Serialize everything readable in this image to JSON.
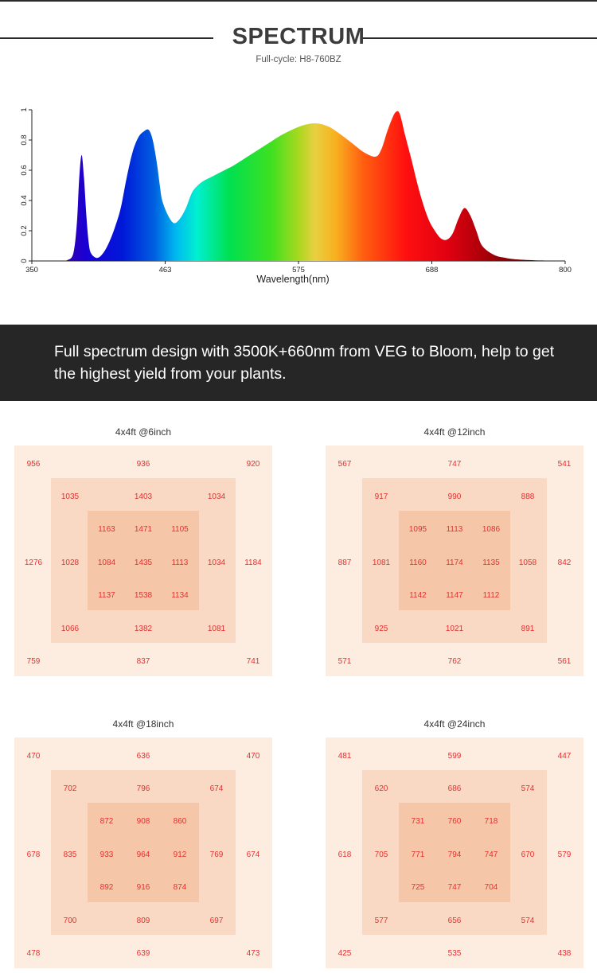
{
  "header": {
    "title": "SPECTRUM",
    "subtitle": "Full-cycle: H8-760BZ"
  },
  "chart_data": [
    {
      "type": "area",
      "title": "",
      "xlabel": "Wavelength(nm)",
      "ylabel": "",
      "xlim": [
        350,
        800
      ],
      "ylim": [
        0,
        1
      ],
      "x_ticks": [
        "350",
        "463",
        "575",
        "688",
        "800"
      ],
      "y_ticks": [
        "0",
        "0.2",
        "0.4",
        "0.6",
        "0.8",
        "1"
      ],
      "fill": "wavelength-colored gradient",
      "x": [
        350,
        375,
        380,
        385,
        388,
        390,
        392,
        394,
        396,
        398,
        400,
        405,
        410,
        415,
        420,
        425,
        430,
        435,
        440,
        445,
        448,
        450,
        452,
        454,
        456,
        458,
        460,
        465,
        470,
        475,
        480,
        485,
        490,
        495,
        500,
        505,
        510,
        515,
        520,
        530,
        540,
        550,
        560,
        570,
        580,
        590,
        600,
        610,
        620,
        630,
        640,
        645,
        650,
        655,
        658,
        660,
        662,
        665,
        670,
        675,
        680,
        685,
        690,
        695,
        700,
        705,
        710,
        715,
        720,
        725,
        730,
        740,
        750,
        760,
        780,
        800
      ],
      "y": [
        0,
        0,
        0.005,
        0.05,
        0.25,
        0.55,
        0.7,
        0.55,
        0.3,
        0.12,
        0.05,
        0.02,
        0.05,
        0.12,
        0.22,
        0.35,
        0.55,
        0.72,
        0.82,
        0.86,
        0.87,
        0.85,
        0.8,
        0.72,
        0.62,
        0.5,
        0.4,
        0.3,
        0.25,
        0.28,
        0.35,
        0.45,
        0.5,
        0.53,
        0.55,
        0.57,
        0.59,
        0.61,
        0.63,
        0.68,
        0.73,
        0.78,
        0.83,
        0.87,
        0.9,
        0.91,
        0.89,
        0.84,
        0.78,
        0.72,
        0.69,
        0.74,
        0.86,
        0.96,
        0.99,
        0.98,
        0.93,
        0.83,
        0.68,
        0.52,
        0.38,
        0.27,
        0.2,
        0.15,
        0.14,
        0.18,
        0.28,
        0.35,
        0.3,
        0.2,
        0.1,
        0.04,
        0.02,
        0.01,
        0.003,
        0
      ]
    },
    {
      "type": "heatmap",
      "title": "4x4ft @6inch",
      "rows": [
        [
          "956",
          "936",
          "920"
        ],
        [
          "1035",
          "1403",
          "1034"
        ],
        [
          "1163",
          "1471",
          "1105"
        ],
        [
          "1276",
          "1028",
          "1084",
          "1435",
          "1113",
          "1034",
          "1184"
        ],
        [
          "1137",
          "1538",
          "1134"
        ],
        [
          "1066",
          "1382",
          "1081"
        ],
        [
          "759",
          "837",
          "741"
        ]
      ]
    },
    {
      "type": "heatmap",
      "title": "4x4ft @12inch",
      "rows": [
        [
          "567",
          "747",
          "541"
        ],
        [
          "917",
          "990",
          "888"
        ],
        [
          "1095",
          "1113",
          "1086"
        ],
        [
          "887",
          "1081",
          "1160",
          "1174",
          "1135",
          "1058",
          "842"
        ],
        [
          "1142",
          "1147",
          "1112"
        ],
        [
          "925",
          "1021",
          "891"
        ],
        [
          "571",
          "762",
          "561"
        ]
      ]
    },
    {
      "type": "heatmap",
      "title": "4x4ft @18inch",
      "rows": [
        [
          "470",
          "636",
          "470"
        ],
        [
          "702",
          "796",
          "674"
        ],
        [
          "872",
          "908",
          "860"
        ],
        [
          "678",
          "835",
          "933",
          "964",
          "912",
          "769",
          "674"
        ],
        [
          "892",
          "916",
          "874"
        ],
        [
          "700",
          "809",
          "697"
        ],
        [
          "478",
          "639",
          "473"
        ]
      ]
    },
    {
      "type": "heatmap",
      "title": "4x4ft @24inch",
      "rows": [
        [
          "481",
          "599",
          "447"
        ],
        [
          "620",
          "686",
          "574"
        ],
        [
          "731",
          "760",
          "718"
        ],
        [
          "618",
          "705",
          "771",
          "794",
          "747",
          "670",
          "579"
        ],
        [
          "725",
          "747",
          "704"
        ],
        [
          "577",
          "656",
          "574"
        ],
        [
          "425",
          "535",
          "438"
        ]
      ]
    }
  ],
  "banner": {
    "text": "Full spectrum design with 3500K+660nm from VEG to Bloom, help to get the highest yield from your plants."
  }
}
